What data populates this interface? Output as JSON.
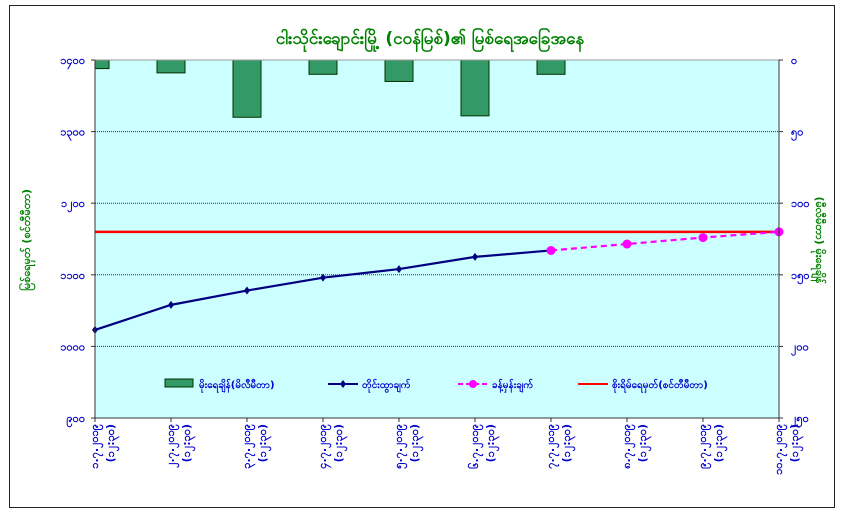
{
  "chart_data": {
    "type": "line",
    "title": "ငါးသိုင်းချောင်းမြို့ (ငဝန်မြစ်)၏ မြစ်ရေအခြေအနေ",
    "ylabel": "မြစ်ရေမှတ် (စင်တီမီတာ)",
    "y2label": "(မီလီမီတာ) မိုးရေချိန်",
    "ylim": [
      900,
      1400
    ],
    "yticks": [
      900,
      1000,
      1100,
      1200,
      1300,
      1400
    ],
    "ytick_labels": [
      "၉၀၀",
      "၁၀၀၀",
      "၁၁၀၀",
      "၁၂၀၀",
      "၁၃၀၀",
      "၁၄၀၀"
    ],
    "y2lim": [
      0,
      250
    ],
    "y2_inverted": true,
    "y2ticks": [
      0,
      50,
      100,
      150,
      200,
      250
    ],
    "y2tick_labels": [
      "၀",
      "၅၀",
      "၁၀၀",
      "၁၅၀",
      "၂၀၀",
      "၂၅၀"
    ],
    "categories": [
      [
        "၁.၇.၂၀၁၉",
        "(၁၂:၃၀)"
      ],
      [
        "၂.၇.၂၀၁၉",
        "(၁၂:၃၀)"
      ],
      [
        "၃.၇.၂၀၁၉",
        "(၁၂:၃၀)"
      ],
      [
        "၄.၇.၂၀၁၉",
        "(၁၂:၃၀)"
      ],
      [
        "၅.၇.၂၀၁၉",
        "(၁၂:၃၀)"
      ],
      [
        "၆.၇.၂၀၁၉",
        "(၁၂:၃၀)"
      ],
      [
        "၇.၇.၂၀၁၉",
        "(၁၂:၃၀)"
      ],
      [
        "၈.၇.၂၀၁၉",
        "(၁၂:၃၀)"
      ],
      [
        "၉.၇.၂၀၁၉",
        "(၁၂:၃၀)"
      ],
      [
        "၁၀.၇.၂၀၁၉",
        "(၁၂:၃၀)"
      ]
    ],
    "grid": true,
    "legend_position": "bottom-inside",
    "series": [
      {
        "name": "မိုးရေချိန်(မိလီမီတာ)",
        "kind": "bar",
        "axis": "right",
        "color": "#339966",
        "values": [
          6,
          9,
          40,
          10,
          15,
          39,
          10,
          null,
          null,
          null
        ]
      },
      {
        "name": "တိုင်းထွာချက်",
        "kind": "line",
        "axis": "left",
        "color": "#000080",
        "values": [
          1023,
          1058,
          1078,
          1096,
          1108,
          1125,
          1134,
          null,
          null,
          null
        ]
      },
      {
        "name": "ခန့်မှန်းချက်",
        "kind": "dashed-line",
        "axis": "left",
        "color": "#ff00ff",
        "values": [
          null,
          null,
          null,
          null,
          null,
          null,
          1134,
          1143,
          1152,
          1160
        ]
      },
      {
        "name": "စိုးရိမ်ရေမှတ်(စင်တီမီတာ)",
        "kind": "hline",
        "axis": "left",
        "color": "#ff0000",
        "value": 1160
      }
    ]
  },
  "colors": {
    "plot_bg": "#ccffff",
    "axis_text": "#0000cc",
    "title": "#008000"
  }
}
